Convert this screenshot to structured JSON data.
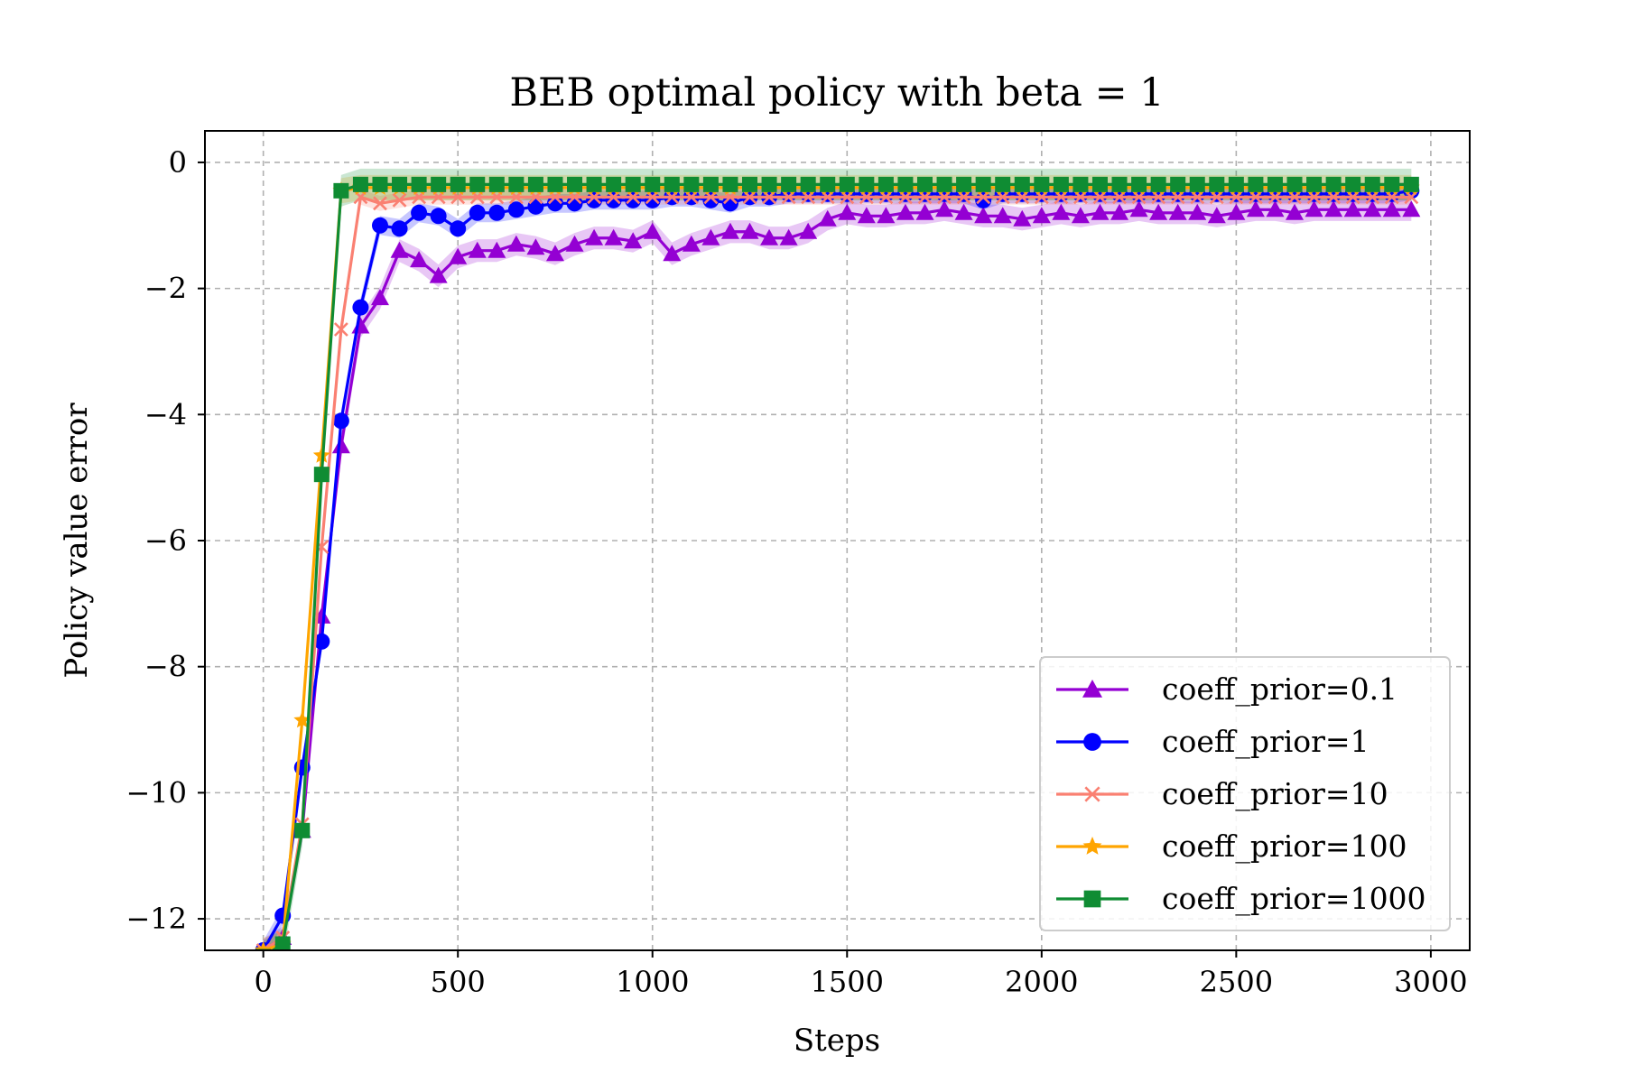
{
  "chart_data": {
    "type": "line",
    "title": "BEB optimal policy with beta = 1",
    "xlabel": "Steps",
    "ylabel": "Policy value error",
    "xlim": [
      -150,
      3100
    ],
    "ylim": [
      -12.5,
      0.5
    ],
    "xticks": [
      0,
      500,
      1000,
      1500,
      2000,
      2500,
      3000
    ],
    "xtick_labels": [
      "0",
      "500",
      "1000",
      "1500",
      "2000",
      "2500",
      "3000"
    ],
    "yticks": [
      0,
      -2,
      -4,
      -6,
      -8,
      -10,
      -12
    ],
    "ytick_labels": [
      "0",
      "−2",
      "−4",
      "−6",
      "−8",
      "−10",
      "−12"
    ],
    "grid": true,
    "legend_position": "lower-right",
    "series": [
      {
        "name": "coeff_prior=0.1",
        "color": "#9400d3",
        "marker": "triangle",
        "band": 0.18,
        "x": [
          0,
          50,
          100,
          150,
          200,
          250,
          300,
          350,
          400,
          450,
          500,
          550,
          600,
          650,
          700,
          750,
          800,
          850,
          900,
          950,
          1000,
          1050,
          1100,
          1150,
          1200,
          1250,
          1300,
          1350,
          1400,
          1450,
          1500,
          1550,
          1600,
          1650,
          1700,
          1750,
          1800,
          1850,
          1900,
          1950,
          2000,
          2050,
          2100,
          2150,
          2200,
          2250,
          2300,
          2350,
          2400,
          2450,
          2500,
          2550,
          2600,
          2650,
          2700,
          2750,
          2800,
          2850,
          2900,
          2950
        ],
        "y": [
          -12.5,
          -12.3,
          -10.6,
          -7.2,
          -4.5,
          -2.6,
          -2.15,
          -1.4,
          -1.55,
          -1.8,
          -1.5,
          -1.4,
          -1.4,
          -1.3,
          -1.35,
          -1.45,
          -1.3,
          -1.2,
          -1.2,
          -1.25,
          -1.1,
          -1.45,
          -1.3,
          -1.2,
          -1.1,
          -1.1,
          -1.2,
          -1.2,
          -1.1,
          -0.9,
          -0.8,
          -0.85,
          -0.85,
          -0.8,
          -0.8,
          -0.75,
          -0.8,
          -0.85,
          -0.85,
          -0.9,
          -0.85,
          -0.8,
          -0.85,
          -0.8,
          -0.8,
          -0.75,
          -0.8,
          -0.8,
          -0.8,
          -0.85,
          -0.8,
          -0.75,
          -0.75,
          -0.8,
          -0.75,
          -0.75,
          -0.75,
          -0.75,
          -0.75,
          -0.75
        ]
      },
      {
        "name": "coeff_prior=1",
        "color": "#0000ff",
        "marker": "circle",
        "band": 0.15,
        "x": [
          0,
          50,
          100,
          150,
          200,
          250,
          300,
          350,
          400,
          450,
          500,
          550,
          600,
          650,
          700,
          750,
          800,
          850,
          900,
          950,
          1000,
          1050,
          1100,
          1150,
          1200,
          1250,
          1300,
          1350,
          1400,
          1450,
          1500,
          1550,
          1600,
          1650,
          1700,
          1750,
          1800,
          1850,
          1900,
          1950,
          2000,
          2050,
          2100,
          2150,
          2200,
          2250,
          2300,
          2350,
          2400,
          2450,
          2500,
          2550,
          2600,
          2650,
          2700,
          2750,
          2800,
          2850,
          2900,
          2950
        ],
        "y": [
          -12.5,
          -11.95,
          -9.6,
          -7.6,
          -4.1,
          -2.3,
          -1.0,
          -1.05,
          -0.8,
          -0.85,
          -1.05,
          -0.8,
          -0.8,
          -0.75,
          -0.7,
          -0.65,
          -0.65,
          -0.6,
          -0.6,
          -0.6,
          -0.6,
          -0.55,
          -0.55,
          -0.6,
          -0.65,
          -0.55,
          -0.55,
          -0.5,
          -0.5,
          -0.5,
          -0.5,
          -0.5,
          -0.5,
          -0.5,
          -0.5,
          -0.5,
          -0.5,
          -0.6,
          -0.5,
          -0.5,
          -0.5,
          -0.5,
          -0.5,
          -0.5,
          -0.5,
          -0.5,
          -0.5,
          -0.5,
          -0.5,
          -0.5,
          -0.5,
          -0.5,
          -0.5,
          -0.5,
          -0.5,
          -0.5,
          -0.5,
          -0.5,
          -0.5,
          -0.45
        ]
      },
      {
        "name": "coeff_prior=10",
        "color": "#fa8072",
        "marker": "x",
        "band": 0.12,
        "x": [
          0,
          50,
          100,
          150,
          200,
          250,
          300,
          350,
          400,
          450,
          500,
          550,
          600,
          650,
          700,
          750,
          800,
          850,
          900,
          950,
          1000,
          1050,
          1100,
          1150,
          1200,
          1250,
          1300,
          1350,
          1400,
          1450,
          1500,
          1550,
          1600,
          1650,
          1700,
          1750,
          1800,
          1850,
          1900,
          1950,
          2000,
          2050,
          2100,
          2150,
          2200,
          2250,
          2300,
          2350,
          2400,
          2450,
          2500,
          2550,
          2600,
          2650,
          2700,
          2750,
          2800,
          2850,
          2900,
          2950
        ],
        "y": [
          -12.5,
          -12.3,
          -10.5,
          -6.1,
          -2.65,
          -0.55,
          -0.65,
          -0.6,
          -0.55,
          -0.55,
          -0.55,
          -0.55,
          -0.55,
          -0.55,
          -0.55,
          -0.55,
          -0.55,
          -0.55,
          -0.55,
          -0.55,
          -0.55,
          -0.55,
          -0.55,
          -0.55,
          -0.55,
          -0.55,
          -0.55,
          -0.55,
          -0.55,
          -0.55,
          -0.55,
          -0.55,
          -0.55,
          -0.55,
          -0.55,
          -0.55,
          -0.55,
          -0.55,
          -0.55,
          -0.55,
          -0.55,
          -0.55,
          -0.55,
          -0.55,
          -0.55,
          -0.55,
          -0.55,
          -0.55,
          -0.55,
          -0.55,
          -0.55,
          -0.55,
          -0.55,
          -0.55,
          -0.55,
          -0.55,
          -0.55,
          -0.55,
          -0.55,
          -0.55
        ]
      },
      {
        "name": "coeff_prior=100",
        "color": "#ffa500",
        "marker": "star",
        "band": 0.2,
        "x": [
          0,
          50,
          100,
          150,
          200,
          250,
          300,
          350,
          400,
          450,
          500,
          550,
          600,
          650,
          700,
          750,
          800,
          850,
          900,
          950,
          1000,
          1050,
          1100,
          1150,
          1200,
          1250,
          1300,
          1350,
          1400,
          1450,
          1500,
          1550,
          1600,
          1650,
          1700,
          1750,
          1800,
          1850,
          1900,
          1950,
          2000,
          2050,
          2100,
          2150,
          2200,
          2250,
          2300,
          2350,
          2400,
          2450,
          2500,
          2550,
          2600,
          2650,
          2700,
          2750,
          2800,
          2850,
          2900,
          2950
        ],
        "y": [
          -12.5,
          -12.4,
          -8.85,
          -4.65,
          -0.45,
          -0.4,
          -0.4,
          -0.4,
          -0.4,
          -0.4,
          -0.4,
          -0.4,
          -0.4,
          -0.4,
          -0.4,
          -0.4,
          -0.4,
          -0.4,
          -0.4,
          -0.4,
          -0.4,
          -0.4,
          -0.4,
          -0.4,
          -0.4,
          -0.4,
          -0.4,
          -0.4,
          -0.4,
          -0.4,
          -0.4,
          -0.4,
          -0.4,
          -0.4,
          -0.4,
          -0.4,
          -0.4,
          -0.4,
          -0.4,
          -0.4,
          -0.4,
          -0.4,
          -0.4,
          -0.4,
          -0.4,
          -0.4,
          -0.4,
          -0.4,
          -0.4,
          -0.4,
          -0.4,
          -0.4,
          -0.4,
          -0.4,
          -0.4,
          -0.4,
          -0.4,
          -0.4,
          -0.4,
          -0.4
        ]
      },
      {
        "name": "coeff_prior=1000",
        "color": "#0f8c33",
        "marker": "square",
        "band": 0.25,
        "x": [
          0,
          50,
          100,
          150,
          200,
          250,
          300,
          350,
          400,
          450,
          500,
          550,
          600,
          650,
          700,
          750,
          800,
          850,
          900,
          950,
          1000,
          1050,
          1100,
          1150,
          1200,
          1250,
          1300,
          1350,
          1400,
          1450,
          1500,
          1550,
          1600,
          1650,
          1700,
          1750,
          1800,
          1850,
          1900,
          1950,
          2000,
          2050,
          2100,
          2150,
          2200,
          2250,
          2300,
          2350,
          2400,
          2450,
          2500,
          2550,
          2600,
          2650,
          2700,
          2750,
          2800,
          2850,
          2900,
          2950
        ],
        "y": [
          -12.6,
          -12.4,
          -10.6,
          -4.95,
          -0.45,
          -0.35,
          -0.35,
          -0.35,
          -0.35,
          -0.35,
          -0.35,
          -0.35,
          -0.35,
          -0.35,
          -0.35,
          -0.35,
          -0.35,
          -0.35,
          -0.35,
          -0.35,
          -0.35,
          -0.35,
          -0.35,
          -0.35,
          -0.35,
          -0.35,
          -0.35,
          -0.35,
          -0.35,
          -0.35,
          -0.35,
          -0.35,
          -0.35,
          -0.35,
          -0.35,
          -0.35,
          -0.35,
          -0.35,
          -0.35,
          -0.35,
          -0.35,
          -0.35,
          -0.35,
          -0.35,
          -0.35,
          -0.35,
          -0.35,
          -0.35,
          -0.35,
          -0.35,
          -0.35,
          -0.35,
          -0.35,
          -0.35,
          -0.35,
          -0.35,
          -0.35,
          -0.35,
          -0.35,
          -0.35
        ]
      }
    ]
  }
}
